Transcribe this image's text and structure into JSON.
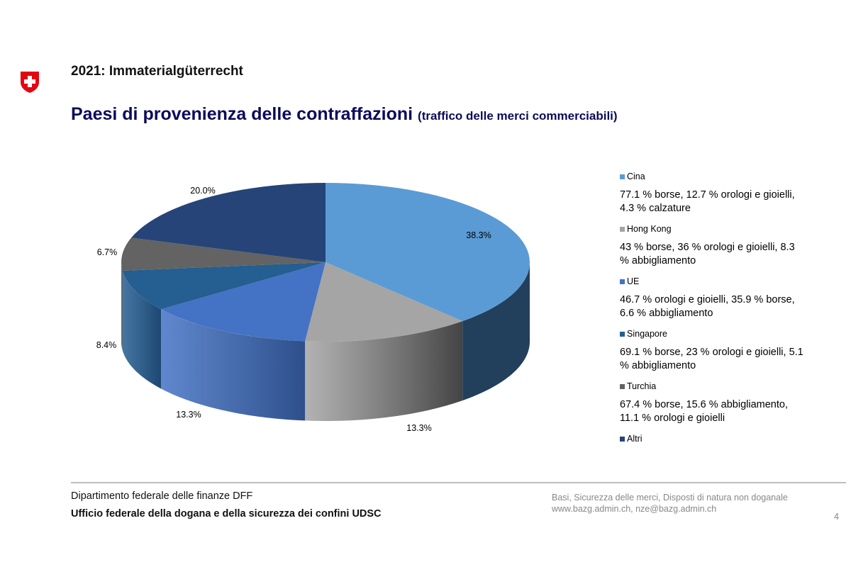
{
  "header": {
    "kicker": "2021: Immaterialgüterrecht",
    "title": "Paesi di provenienza delle contraffazioni",
    "subtitle": "(traffico delle merci commerciabili)",
    "logo_icon": "swiss-cross-shield-icon",
    "logo_color": "#e30613"
  },
  "chart_data": {
    "type": "pie",
    "style": "3d",
    "title": "Paesi di provenienza delle contraffazioni (traffico delle merci commerciabili)",
    "legend_position": "right",
    "slices": [
      {
        "label": "Cina",
        "value": 38.3,
        "display": "38.3%",
        "color": "#5b9bd5",
        "side_color": "#223f5c",
        "description": "77.1 % borse, 12.7 % orologi e gioielli, 4.3 % calzature"
      },
      {
        "label": "Hong Kong",
        "value": 13.3,
        "display": "13.3%",
        "color": "#a5a5a5",
        "side_color": "#444444",
        "description": "43 % borse, 36 % orologi e gioielli, 8.3 % abbigliamento"
      },
      {
        "label": "UE",
        "value": 13.3,
        "display": "13.3%",
        "color": "#4472c4",
        "side_color": "#2e4f8a",
        "description": "46.7 % orologi e gioielli, 35.9 % borse, 6.6 % abbigliamento"
      },
      {
        "label": "Singapore",
        "value": 8.4,
        "display": "8.4%",
        "color": "#255e91",
        "side_color": "#1c4872",
        "description": "69.1 % borse, 23 % orologi e gioielli, 5.1 % abbigliamento"
      },
      {
        "label": "Turchia",
        "value": 6.7,
        "display": "6.7%",
        "color": "#636363",
        "side_color": "#444444",
        "description": "67.4 % borse, 15.6 % abbigliamento, 11.1 % orologi e gioielli"
      },
      {
        "label": "Altri",
        "value": 20.0,
        "display": "20.0%",
        "color": "#264478",
        "side_color": "#1a2f55",
        "description": ""
      }
    ]
  },
  "footer": {
    "department": "Dipartimento federale delle finanze DFF",
    "office": "Ufficio federale della dogana e della sicurezza dei confini UDSC",
    "topic": "Basi, Sicurezza delle merci, Disposti di natura non doganale",
    "contact": "www.bazg.admin.ch, nze@bazg.admin.ch",
    "page_number": "4"
  }
}
